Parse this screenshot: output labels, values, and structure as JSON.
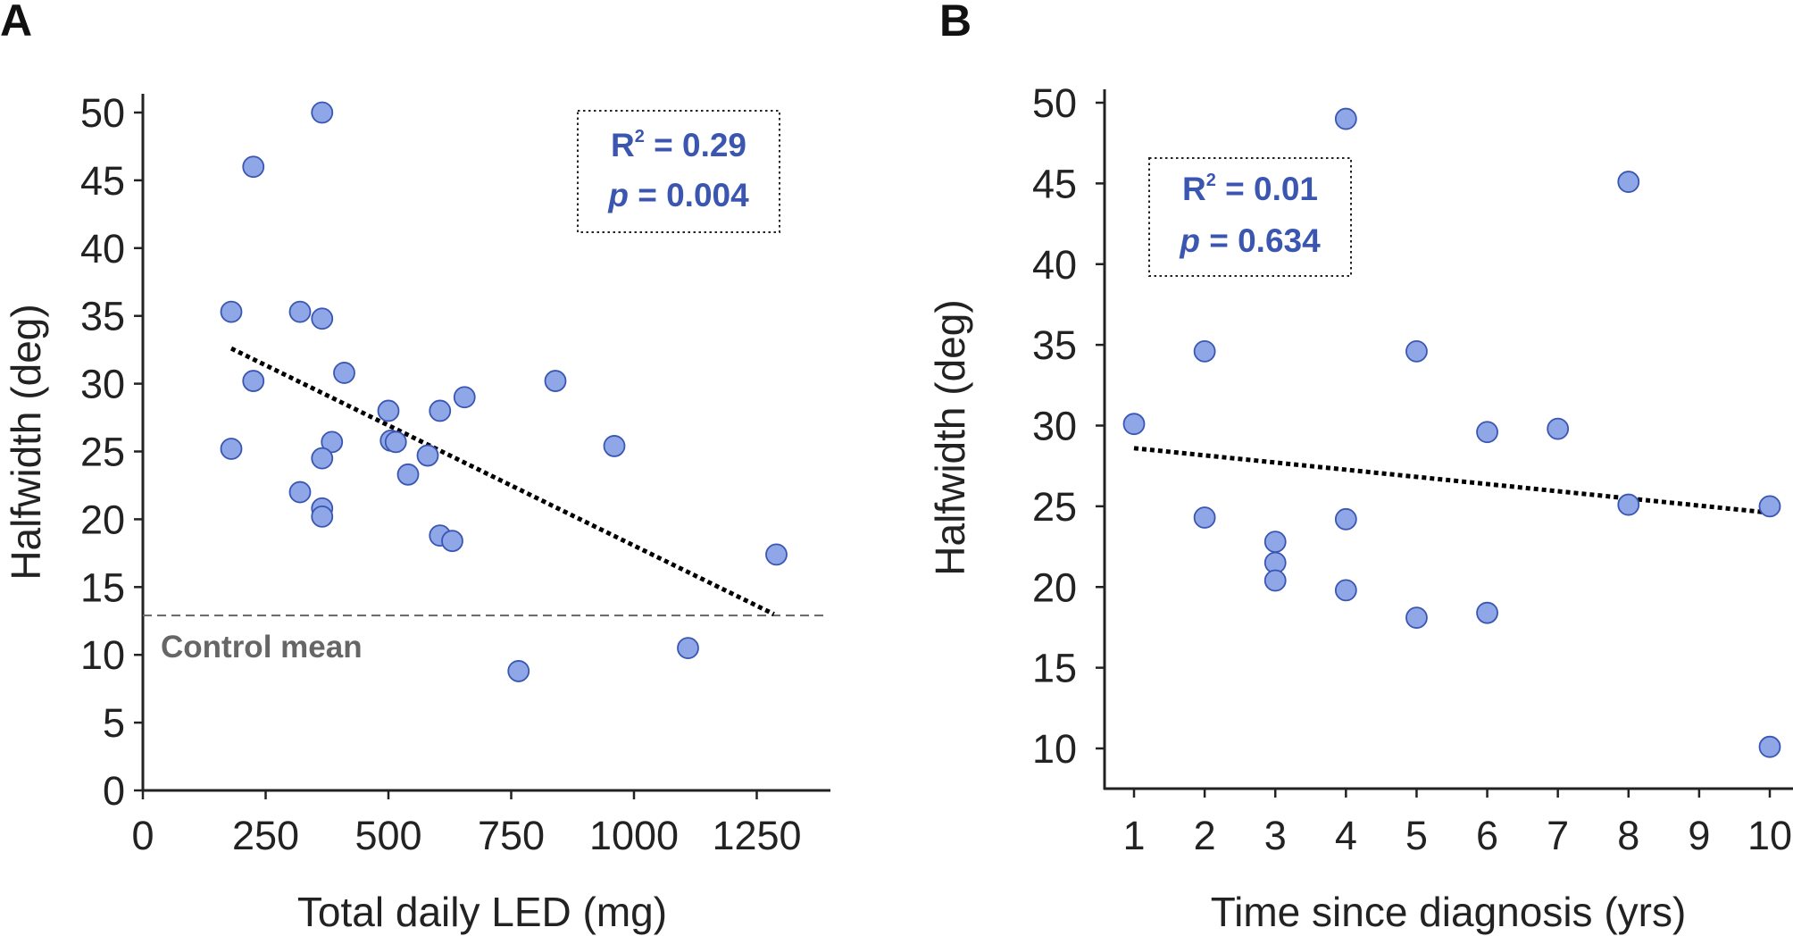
{
  "colors": {
    "point_fill": "#8FA7E6",
    "point_stroke": "#3A56B4",
    "stat_text": "#3B56B0",
    "axis": "#222222",
    "trend": "#000000",
    "reference_line": "#666666"
  },
  "chart_data": [
    {
      "panel": "A",
      "type": "scatter",
      "title": "",
      "xlabel": "Total daily LED (mg)",
      "ylabel": "Halfwidth (deg)",
      "xlim": [
        0,
        1400
      ],
      "ylim": [
        0,
        51
      ],
      "xticks": [
        0,
        250,
        500,
        750,
        1000,
        1250
      ],
      "yticks": [
        0,
        5,
        10,
        15,
        20,
        25,
        30,
        35,
        40,
        45,
        50
      ],
      "points": [
        {
          "x": 365,
          "y": 50
        },
        {
          "x": 225,
          "y": 46
        },
        {
          "x": 180,
          "y": 35.3
        },
        {
          "x": 320,
          "y": 35.3
        },
        {
          "x": 365,
          "y": 34.8
        },
        {
          "x": 410,
          "y": 30.8
        },
        {
          "x": 225,
          "y": 30.2
        },
        {
          "x": 840,
          "y": 30.2
        },
        {
          "x": 655,
          "y": 29
        },
        {
          "x": 500,
          "y": 28
        },
        {
          "x": 605,
          "y": 28
        },
        {
          "x": 385,
          "y": 25.7
        },
        {
          "x": 505,
          "y": 25.8
        },
        {
          "x": 515,
          "y": 25.7
        },
        {
          "x": 960,
          "y": 25.4
        },
        {
          "x": 180,
          "y": 25.2
        },
        {
          "x": 365,
          "y": 24.5
        },
        {
          "x": 580,
          "y": 24.7
        },
        {
          "x": 540,
          "y": 23.3
        },
        {
          "x": 320,
          "y": 22
        },
        {
          "x": 365,
          "y": 20.8
        },
        {
          "x": 365,
          "y": 20.2
        },
        {
          "x": 605,
          "y": 18.8
        },
        {
          "x": 630,
          "y": 18.4
        },
        {
          "x": 1290,
          "y": 17.4
        },
        {
          "x": 1110,
          "y": 10.5
        },
        {
          "x": 765,
          "y": 8.8
        }
      ],
      "trendline": {
        "x": [
          180,
          1285
        ],
        "y": [
          32.6,
          13
        ]
      },
      "reference_line": {
        "y": 12.9,
        "label": "Control mean"
      },
      "stats": {
        "r2_label": "R",
        "r2_sup": "2",
        "r2_value": " = 0.29",
        "p_label": "p",
        "p_value": " = 0.004"
      }
    },
    {
      "panel": "B",
      "type": "scatter",
      "title": "",
      "xlabel": "Time since diagnosis (yrs)",
      "ylabel": "Halfwidth (deg)",
      "xlim": [
        0.6,
        10.3
      ],
      "ylim": [
        7.5,
        50
      ],
      "xticks": [
        1,
        2,
        3,
        4,
        5,
        6,
        7,
        8,
        9,
        10
      ],
      "yticks": [
        10,
        15,
        20,
        25,
        30,
        35,
        40,
        45,
        50
      ],
      "points": [
        {
          "x": 4,
          "y": 49
        },
        {
          "x": 8,
          "y": 45.1
        },
        {
          "x": 2,
          "y": 34.6
        },
        {
          "x": 5,
          "y": 34.6
        },
        {
          "x": 1,
          "y": 30.1
        },
        {
          "x": 7,
          "y": 29.8
        },
        {
          "x": 6,
          "y": 29.6
        },
        {
          "x": 8,
          "y": 25.1
        },
        {
          "x": 10,
          "y": 25
        },
        {
          "x": 2,
          "y": 24.3
        },
        {
          "x": 4,
          "y": 24.2
        },
        {
          "x": 3,
          "y": 22.8
        },
        {
          "x": 3,
          "y": 21.5
        },
        {
          "x": 3,
          "y": 20.4
        },
        {
          "x": 4,
          "y": 19.8
        },
        {
          "x": 6,
          "y": 18.4
        },
        {
          "x": 5,
          "y": 18.1
        },
        {
          "x": 10,
          "y": 10.1
        }
      ],
      "trendline": {
        "x": [
          1,
          10
        ],
        "y": [
          28.6,
          24.6
        ]
      },
      "stats": {
        "r2_label": "R",
        "r2_sup": "2",
        "r2_value": " = 0.01",
        "p_label": "p",
        "p_value": " = 0.634"
      }
    }
  ]
}
